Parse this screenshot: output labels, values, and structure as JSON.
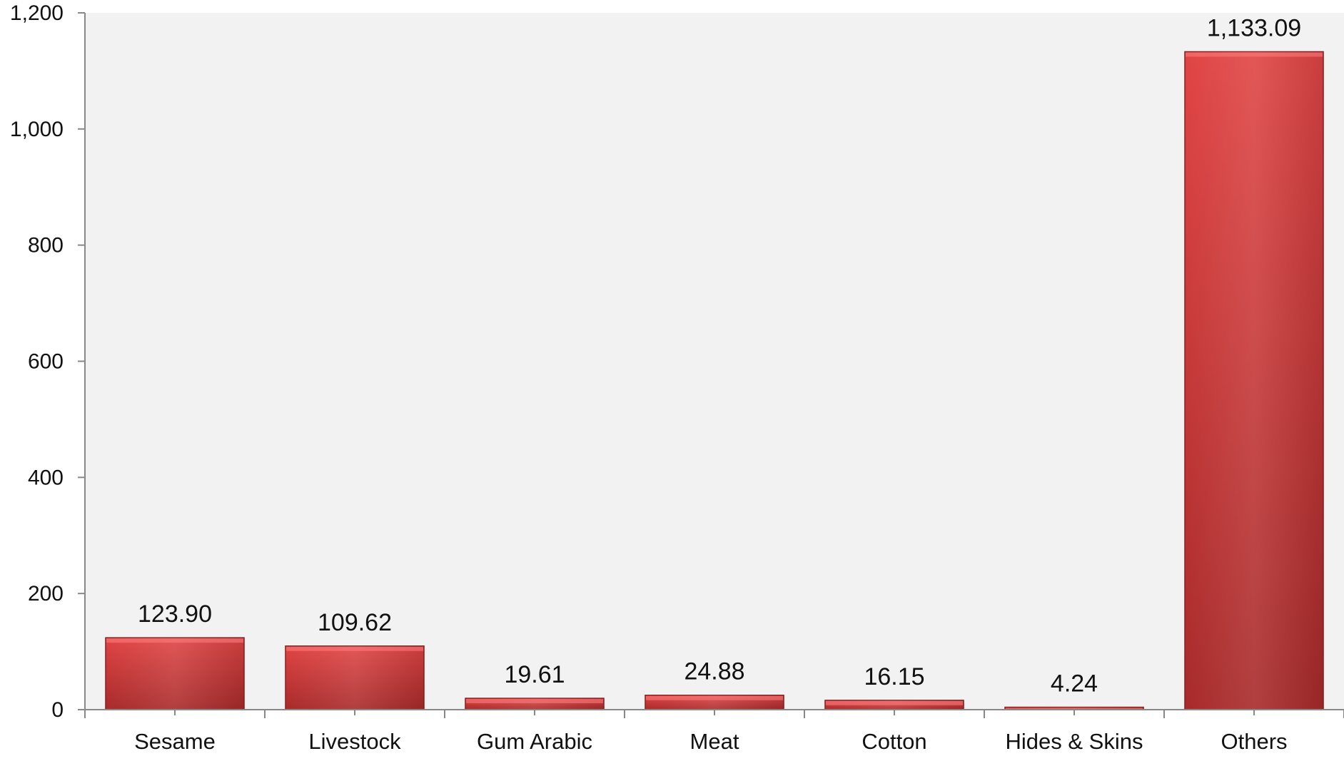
{
  "chart_data": {
    "type": "bar",
    "title": "",
    "xlabel": "",
    "ylabel": "",
    "ylim": [
      0,
      1200
    ],
    "y_ticks": [
      0,
      200,
      400,
      600,
      800,
      1000,
      1200
    ],
    "y_tick_labels": [
      "0",
      "200",
      "400",
      "600",
      "800",
      "1,000",
      "1,200"
    ],
    "categories": [
      "Sesame",
      "Livestock",
      "Gum Arabic",
      "Meat",
      "Cotton",
      "Hides & Skins",
      "Others"
    ],
    "values": [
      123.9,
      109.62,
      19.61,
      24.88,
      16.15,
      4.24,
      1133.09
    ],
    "value_labels": [
      "123.90",
      "109.62",
      "19.61",
      "24.88",
      "16.15",
      "4.24",
      "1,133.09"
    ],
    "grid": false,
    "legend": "none",
    "colors": {
      "bar_light": "#e04444",
      "bar_dark": "#a82a2a",
      "bar_stroke": "#8e1f1f",
      "plot_background": "#f2f2f2",
      "axis": "#888888"
    }
  }
}
